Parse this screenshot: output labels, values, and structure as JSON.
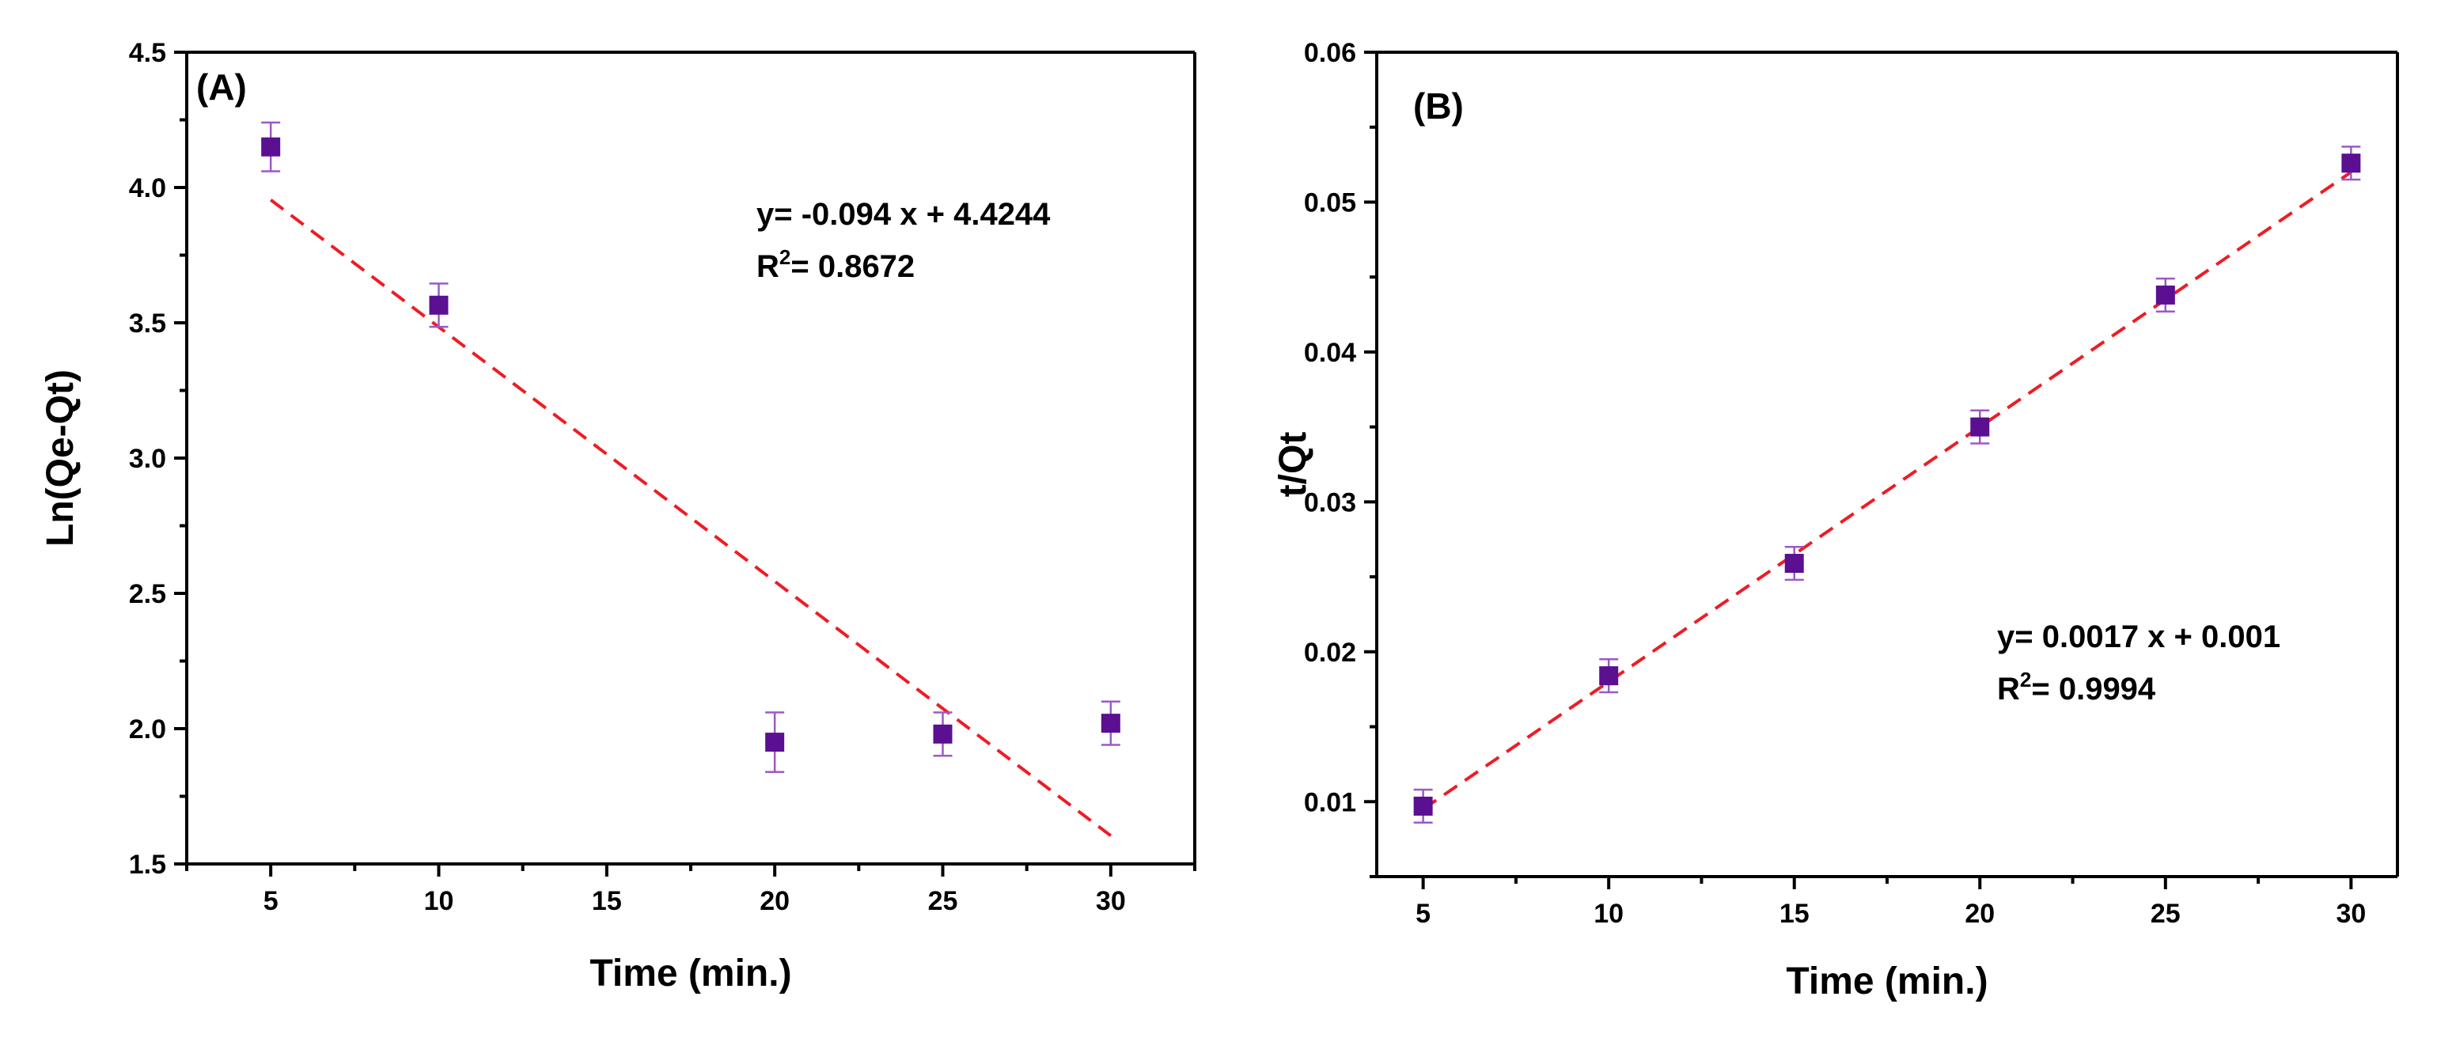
{
  "colors": {
    "marker": "#5b0f91",
    "error_bar": "#9b59c8",
    "fit_line": "#ee1c25",
    "axis": "#000000"
  },
  "chart_data": [
    {
      "type": "scatter",
      "panel_label": "(A)",
      "xlabel": "Time (min.)",
      "ylabel": "Ln(Qe-Qt)",
      "xlim": [
        2.5,
        32.5
      ],
      "ylim": [
        1.5,
        4.5
      ],
      "x_ticks": [
        "5",
        "10",
        "15",
        "20",
        "25",
        "30"
      ],
      "y_ticks": [
        "1.5",
        "2.0",
        "2.5",
        "3.0",
        "3.5",
        "4.0",
        "4.5"
      ],
      "series": [
        {
          "name": "data",
          "x": [
            5,
            10,
            20,
            25,
            30
          ],
          "y": [
            4.15,
            3.565,
            1.95,
            1.98,
            2.02
          ],
          "error": [
            0.09,
            0.08,
            0.11,
            0.08,
            0.08
          ]
        }
      ],
      "fit": {
        "slope": -0.094,
        "intercept": 4.4244,
        "x_range": [
          5,
          30
        ]
      },
      "equation": "y= -0.094 x + 4.4244",
      "r2_prefix": "R",
      "r2_sup": "2",
      "r2_value": "= 0.8672"
    },
    {
      "type": "scatter",
      "panel_label": "(B)",
      "xlabel": "Time (min.)",
      "ylabel": "t/Qt",
      "xlim": [
        3.75,
        31.25
      ],
      "ylim": [
        0.005,
        0.06
      ],
      "x_ticks": [
        "5",
        "10",
        "15",
        "20",
        "25",
        "30"
      ],
      "y_ticks": [
        "0.01",
        "0.02",
        "0.03",
        "0.04",
        "0.05",
        "0.06"
      ],
      "series": [
        {
          "name": "data",
          "x": [
            5,
            10,
            15,
            20,
            25,
            30
          ],
          "y": [
            0.0097,
            0.0184,
            0.0259,
            0.035,
            0.0438,
            0.0526
          ],
          "error": [
            0.0011,
            0.0011,
            0.0011,
            0.0011,
            0.0011,
            0.0011
          ]
        }
      ],
      "fit": {
        "slope": 0.0017,
        "intercept": 0.001,
        "x_range": [
          5,
          30
        ]
      },
      "equation": "y= 0.0017 x + 0.001",
      "r2_prefix": "R",
      "r2_sup": "2",
      "r2_value": "= 0.9994"
    }
  ]
}
